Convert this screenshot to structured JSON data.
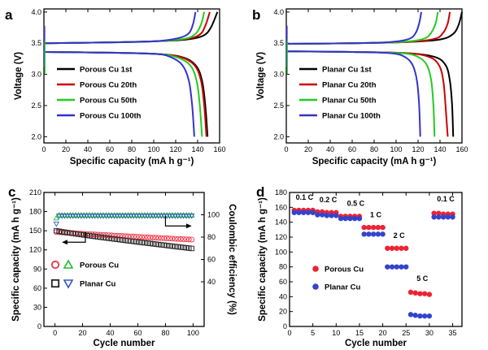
{
  "panels": {
    "a": {
      "letter": "a"
    },
    "b": {
      "letter": "b"
    },
    "c": {
      "letter": "c"
    },
    "d": {
      "letter": "d"
    }
  },
  "chart_data": [
    {
      "panel": "a",
      "type": "line",
      "xlabel": "Specific capacity (mA h g⁻¹)",
      "ylabel": "Voltage (V)",
      "xlim": [
        0,
        160
      ],
      "ylim": [
        1.9,
        4.05
      ],
      "xticks": [
        0,
        20,
        40,
        60,
        80,
        100,
        120,
        140,
        160
      ],
      "yticks": [
        2.0,
        2.5,
        3.0,
        3.5,
        4.0
      ],
      "legend_position": "center-left",
      "series": [
        {
          "name": "Porous Cu  1st",
          "color": "#000000",
          "charge": [
            [
              0,
              3.5
            ],
            [
              50,
              3.51
            ],
            [
              100,
              3.53
            ],
            [
              130,
              3.56
            ],
            [
              145,
              3.62
            ],
            [
              152,
              3.75
            ],
            [
              158,
              4.0
            ]
          ],
          "discharge": [
            [
              0,
              3.36
            ],
            [
              50,
              3.35
            ],
            [
              100,
              3.33
            ],
            [
              125,
              3.28
            ],
            [
              138,
              3.15
            ],
            [
              144,
              2.9
            ],
            [
              147,
              2.5
            ],
            [
              149,
              2.0
            ]
          ]
        },
        {
          "name": "Porous Cu  20th",
          "color": "#cc0000",
          "charge": [
            [
              0,
              3.5
            ],
            [
              50,
              3.51
            ],
            [
              100,
              3.53
            ],
            [
              130,
              3.57
            ],
            [
              142,
              3.64
            ],
            [
              147,
              3.78
            ],
            [
              151,
              4.0
            ]
          ],
          "discharge": [
            [
              0,
              3.36
            ],
            [
              50,
              3.35
            ],
            [
              100,
              3.33
            ],
            [
              124,
              3.28
            ],
            [
              137,
              3.15
            ],
            [
              143,
              2.9
            ],
            [
              146,
              2.5
            ],
            [
              148,
              2.0
            ]
          ]
        },
        {
          "name": "Porous Cu  50th",
          "color": "#22cc22",
          "charge": [
            [
              0,
              3.5
            ],
            [
              50,
              3.51
            ],
            [
              100,
              3.53
            ],
            [
              128,
              3.57
            ],
            [
              138,
              3.65
            ],
            [
              143,
              3.8
            ],
            [
              146,
              4.0
            ]
          ],
          "discharge": [
            [
              0,
              3.36
            ],
            [
              50,
              3.35
            ],
            [
              100,
              3.33
            ],
            [
              120,
              3.28
            ],
            [
              133,
              3.15
            ],
            [
              139,
              2.9
            ],
            [
              142,
              2.5
            ],
            [
              144,
              2.0
            ]
          ]
        },
        {
          "name": "Porous Cu  100th",
          "color": "#3333cc",
          "charge": [
            [
              0,
              3.5
            ],
            [
              50,
              3.51
            ],
            [
              100,
              3.53
            ],
            [
              122,
              3.58
            ],
            [
              132,
              3.66
            ],
            [
              136,
              3.82
            ],
            [
              138,
              4.0
            ]
          ],
          "discharge": [
            [
              0,
              3.36
            ],
            [
              50,
              3.35
            ],
            [
              100,
              3.33
            ],
            [
              115,
              3.28
            ],
            [
              126,
              3.15
            ],
            [
              132,
              2.9
            ],
            [
              135,
              2.5
            ],
            [
              137,
              2.0
            ]
          ]
        }
      ]
    },
    {
      "panel": "b",
      "type": "line",
      "xlabel": "Specific capacity (mA h g⁻¹)",
      "ylabel": "Voltage (V)",
      "xlim": [
        0,
        160
      ],
      "ylim": [
        1.9,
        4.05
      ],
      "xticks": [
        0,
        20,
        40,
        60,
        80,
        100,
        120,
        140,
        160
      ],
      "yticks": [
        2.0,
        2.5,
        3.0,
        3.5,
        4.0
      ],
      "legend_position": "center-left",
      "series": [
        {
          "name": "Planar Cu  1st",
          "color": "#000000",
          "charge": [
            [
              0,
              3.49
            ],
            [
              60,
              3.5
            ],
            [
              110,
              3.52
            ],
            [
              140,
              3.56
            ],
            [
              152,
              3.65
            ],
            [
              157,
              3.8
            ],
            [
              160,
              4.0
            ]
          ],
          "discharge": [
            [
              0,
              3.37
            ],
            [
              60,
              3.36
            ],
            [
              110,
              3.34
            ],
            [
              135,
              3.28
            ],
            [
              145,
              3.15
            ],
            [
              149,
              2.9
            ],
            [
              151,
              2.5
            ],
            [
              152,
              2.0
            ]
          ]
        },
        {
          "name": "Planar Cu  20th",
          "color": "#cc0000",
          "charge": [
            [
              0,
              3.49
            ],
            [
              60,
              3.5
            ],
            [
              110,
              3.52
            ],
            [
              135,
              3.57
            ],
            [
              143,
              3.67
            ],
            [
              147,
              3.82
            ],
            [
              149,
              4.0
            ]
          ],
          "discharge": [
            [
              0,
              3.37
            ],
            [
              60,
              3.36
            ],
            [
              110,
              3.34
            ],
            [
              130,
              3.28
            ],
            [
              139,
              3.15
            ],
            [
              143,
              2.9
            ],
            [
              145,
              2.5
            ],
            [
              147,
              2.0
            ]
          ]
        },
        {
          "name": "Planar Cu  50th",
          "color": "#22cc22",
          "charge": [
            [
              0,
              3.49
            ],
            [
              60,
              3.5
            ],
            [
              105,
              3.52
            ],
            [
              125,
              3.57
            ],
            [
              132,
              3.67
            ],
            [
              136,
              3.82
            ],
            [
              138,
              4.0
            ]
          ],
          "discharge": [
            [
              0,
              3.37
            ],
            [
              60,
              3.36
            ],
            [
              105,
              3.34
            ],
            [
              120,
              3.28
            ],
            [
              128,
              3.15
            ],
            [
              132,
              2.9
            ],
            [
              134,
              2.5
            ],
            [
              135,
              2.0
            ]
          ]
        },
        {
          "name": "Planar Cu  100th",
          "color": "#3333cc",
          "charge": [
            [
              0,
              3.49
            ],
            [
              60,
              3.5
            ],
            [
              95,
              3.52
            ],
            [
              112,
              3.57
            ],
            [
              118,
              3.67
            ],
            [
              121,
              3.82
            ],
            [
              123,
              4.0
            ]
          ],
          "discharge": [
            [
              0,
              3.37
            ],
            [
              60,
              3.36
            ],
            [
              95,
              3.34
            ],
            [
              108,
              3.28
            ],
            [
              115,
              3.15
            ],
            [
              119,
              2.9
            ],
            [
              121,
              2.5
            ],
            [
              122,
              2.0
            ]
          ]
        }
      ]
    },
    {
      "panel": "c",
      "type": "scatter",
      "xlabel": "Cycle number",
      "ylabel": "Specific capacity (mA h g⁻¹)",
      "ylabel_right": "Coulombic efficiency (%)",
      "xlim": [
        -8,
        108
      ],
      "ylim": [
        0,
        210
      ],
      "ylim_right": [
        0,
        120
      ],
      "xticks": [
        0,
        20,
        40,
        60,
        80,
        100
      ],
      "yticks": [
        0,
        30,
        60,
        90,
        120,
        150,
        180,
        210
      ],
      "yticks_right": [
        40,
        60,
        80,
        100
      ],
      "legend_position": "bottom-left",
      "capacity_series": [
        {
          "name": "Porous Cu",
          "marker": "circle",
          "color": "#ee3344",
          "start": 148,
          "end": 136
        },
        {
          "name": "Planar Cu",
          "marker": "square",
          "color": "#222222",
          "start": 150,
          "end": 122
        }
      ],
      "efficiency_series": [
        {
          "name": "Porous Cu",
          "marker": "triangle-up",
          "color": "#22bb33",
          "first": 97,
          "value": 99.5
        },
        {
          "name": "Planar Cu",
          "marker": "triangle-down",
          "color": "#3355cc",
          "first": 92,
          "value": 99.2
        }
      ],
      "legend_labels": [
        "Porous Cu",
        "Planar Cu"
      ]
    },
    {
      "panel": "d",
      "type": "scatter",
      "xlabel": "Cycle number",
      "ylabel": "Specific capacity (mA h g⁻¹)",
      "xlim": [
        0,
        37
      ],
      "ylim": [
        0,
        180
      ],
      "xticks": [
        0,
        5,
        10,
        15,
        20,
        25,
        30,
        35
      ],
      "yticks": [
        0,
        20,
        40,
        60,
        80,
        100,
        120,
        140,
        160,
        180
      ],
      "legend_position": "center-left",
      "rates": [
        "0.1 C",
        "0.2 C",
        "0.5 C",
        "1 C",
        "2 C",
        "5 C",
        "0.1 C"
      ],
      "series": [
        {
          "name": "Porous Cu",
          "color": "#ee2233",
          "values": [
            156,
            156,
            156,
            156,
            156,
            154,
            154,
            153,
            153,
            153,
            148,
            148,
            148,
            148,
            148,
            133,
            133,
            133,
            133,
            133,
            105,
            105,
            105,
            105,
            105,
            46,
            45,
            44,
            44,
            43,
            152,
            152,
            151,
            151,
            151
          ]
        },
        {
          "name": "Planar Cu",
          "color": "#3344cc",
          "values": [
            153,
            153,
            153,
            153,
            153,
            150,
            150,
            149,
            149,
            149,
            145,
            145,
            145,
            145,
            145,
            124,
            124,
            124,
            124,
            124,
            80,
            80,
            80,
            80,
            80,
            16,
            15,
            14,
            14,
            14,
            147,
            147,
            147,
            147,
            147
          ]
        }
      ]
    }
  ]
}
